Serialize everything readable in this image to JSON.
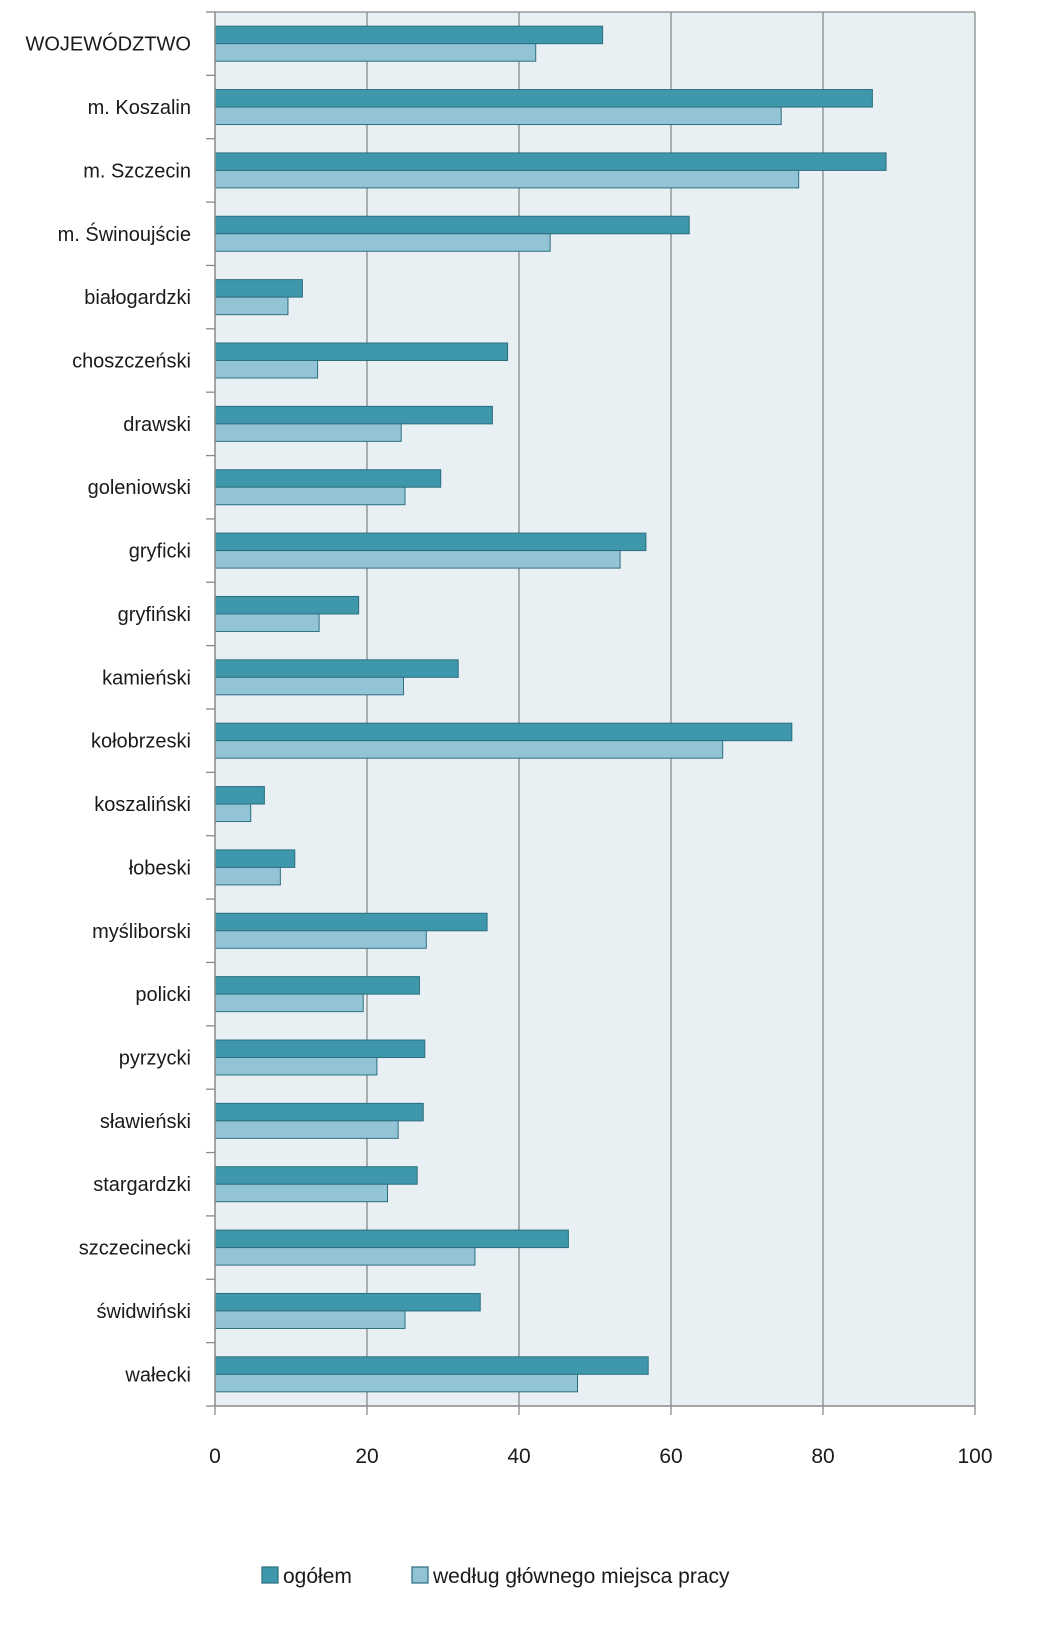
{
  "chart_data": {
    "type": "bar",
    "orientation": "horizontal",
    "categories": [
      "WOJEWÓDZTWO",
      "m. Koszalin",
      "m. Szczecin",
      "m. Świnoujście",
      "białogardzki",
      "choszczeński",
      "drawski",
      "goleniowski",
      "gryficki",
      "gryfiński",
      "kamieński",
      "kołobrzeski",
      "koszaliński",
      "łobeski",
      "myśliborski",
      "policki",
      "pyrzycki",
      "sławieński",
      "stargardzki",
      "szczecinecki",
      "świdwiński",
      "wałecki"
    ],
    "series": [
      {
        "name": "ogółem",
        "color": "#3f97ab",
        "values": [
          51,
          86.5,
          88.3,
          62.4,
          11.5,
          38.5,
          36.5,
          29.7,
          56.7,
          18.9,
          32,
          75.9,
          6.5,
          10.5,
          35.8,
          26.9,
          27.6,
          27.4,
          26.6,
          46.5,
          34.9,
          57
        ]
      },
      {
        "name": "według głównego miejsca pracy",
        "color": "#93c4d6",
        "values": [
          42.2,
          74.5,
          76.8,
          44.1,
          9.6,
          13.5,
          24.5,
          25,
          53.3,
          13.7,
          24.8,
          66.8,
          4.7,
          8.6,
          27.8,
          19.5,
          21.3,
          24.1,
          22.7,
          34.2,
          25,
          47.7
        ]
      }
    ],
    "x_ticks": [
      "0",
      "20",
      "40",
      "60",
      "80",
      "100"
    ],
    "xlim": [
      0,
      100
    ],
    "grid": true,
    "legend_position": "bottom",
    "plot_background": "#e8f0f4"
  }
}
